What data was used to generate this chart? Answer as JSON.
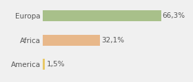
{
  "categories": [
    "Europa",
    "Africa",
    "America"
  ],
  "values": [
    66.3,
    32.1,
    1.5
  ],
  "labels": [
    "66,3%",
    "32,1%",
    "1,5%"
  ],
  "bar_colors": [
    "#a8c08a",
    "#e8b88a",
    "#e8c866"
  ],
  "background_color": "#f0f0f0",
  "xlim": [
    0,
    82
  ],
  "bar_height": 0.45,
  "label_fontsize": 7.5,
  "tick_fontsize": 7.5
}
